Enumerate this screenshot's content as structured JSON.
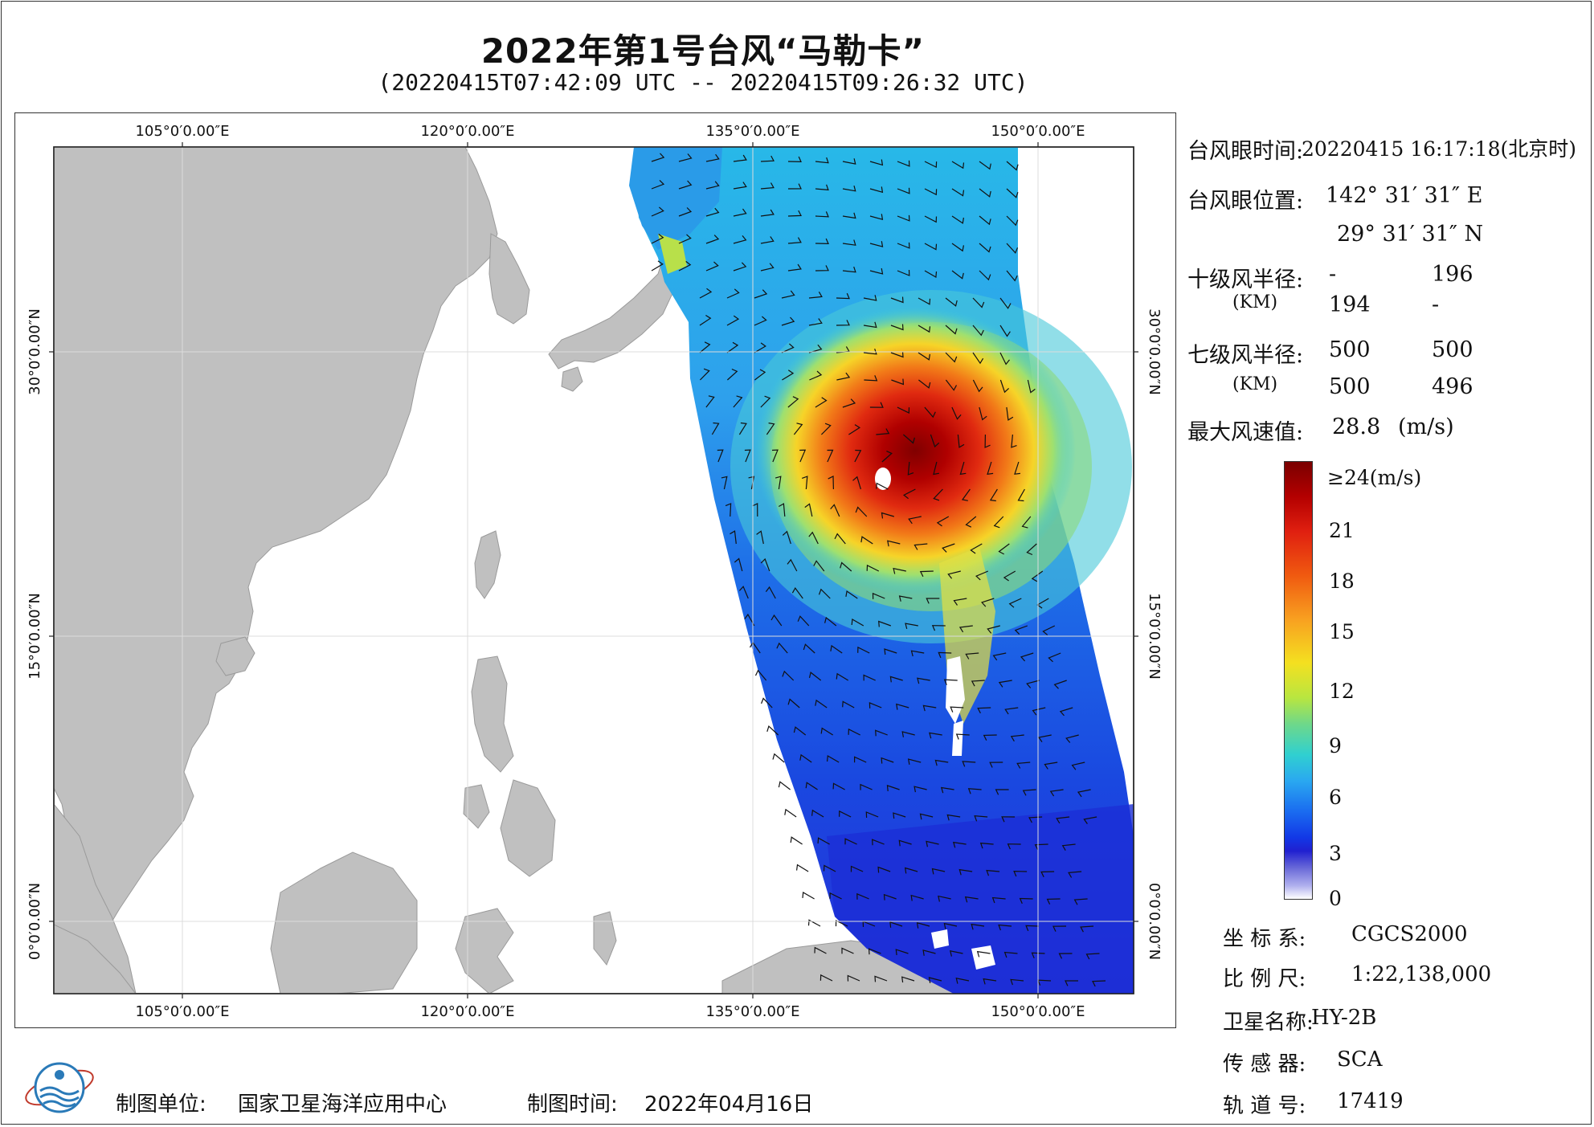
{
  "header": {
    "title": "2022年第1号台风“马勒卡”",
    "subtitle": "(20220415T07:42:09 UTC -- 20220415T09:26:32 UTC)"
  },
  "map": {
    "lon_labels": [
      "105°0′0.00″E",
      "120°0′0.00″E",
      "135°0′0.00″E",
      "150°0′0.00″E"
    ],
    "lat_labels": [
      "30°0′0.00″N",
      "15°0′0.00″N",
      "0°0′0.00″N"
    ],
    "land_color": "#c0c0c0",
    "sea_color": "#ffffff"
  },
  "info": {
    "eye_time_label": "台风眼时间:",
    "eye_time_value": "20220415 16:17:18(北京时)",
    "eye_pos_label": "台风眼位置:",
    "eye_lon": "142° 31′ 31″ E",
    "eye_lat": "29° 31′ 31″ N",
    "r10_label": "十级风半径:",
    "r10_unit": "(KM)",
    "r10_values": [
      "-",
      "196",
      "194",
      "-"
    ],
    "r7_label": "七级风半径:",
    "r7_unit": "(KM)",
    "r7_values": [
      "500",
      "500",
      "500",
      "496"
    ],
    "max_wind_label": "最大风速值:",
    "max_wind_value": "28.8",
    "max_wind_unit": "(m/s)"
  },
  "legend": {
    "labels": [
      "≥24(m/s)",
      "21",
      "18",
      "15",
      "12",
      "9",
      "6",
      "3",
      "0"
    ]
  },
  "meta": {
    "crs_label": "坐 标 系:",
    "crs_value": "CGCS2000",
    "scale_label": "比 例 尺:",
    "scale_value": "1:22,138,000",
    "satellite_label": "卫星名称:",
    "satellite_value": "HY-2B",
    "sensor_label": "传 感 器:",
    "sensor_value": "SCA",
    "orbit_label": "轨 道 号:",
    "orbit_value": "17419"
  },
  "footer": {
    "maker_label": "制图单位:",
    "maker_value": "国家卫星海洋应用中心",
    "date_label": "制图时间:",
    "date_value": "2022年04月16日"
  }
}
